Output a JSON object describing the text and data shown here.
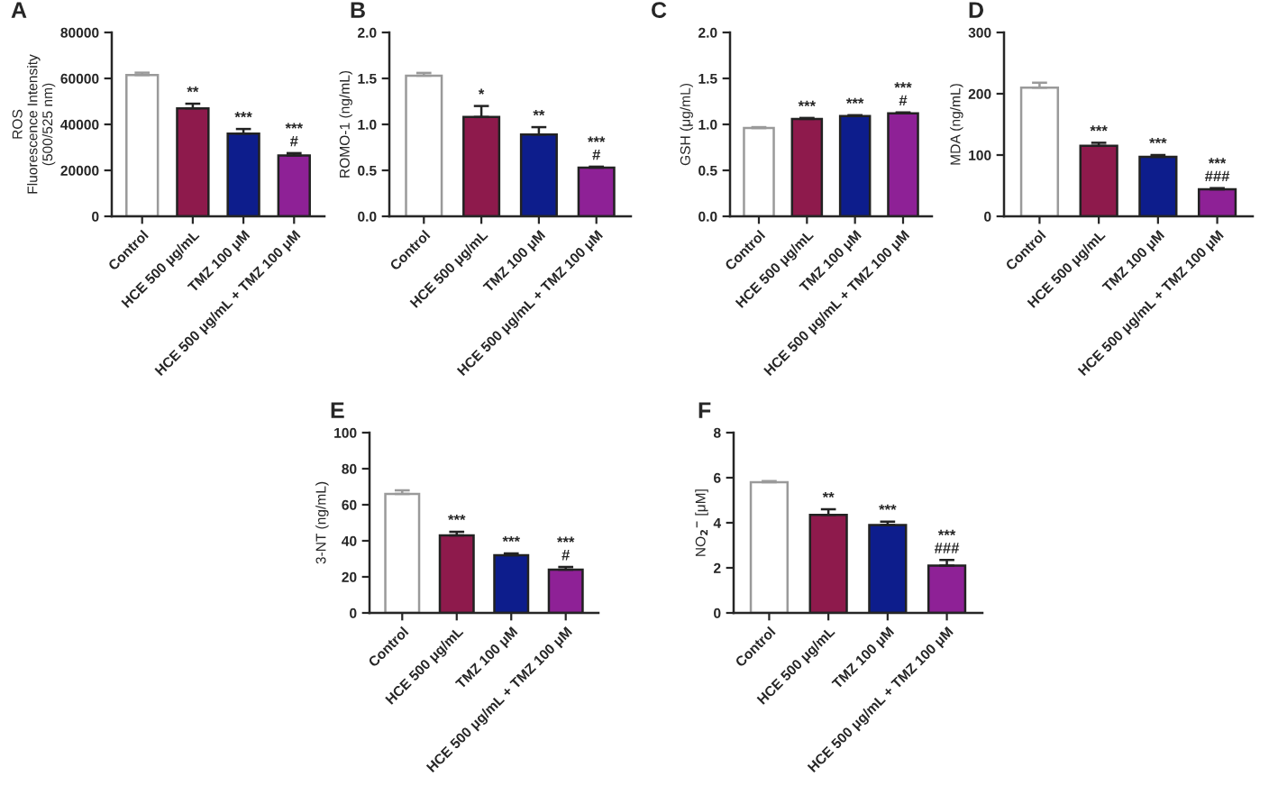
{
  "chart_data": [
    {
      "type": "bar",
      "title": "A",
      "ylabel": "ROS\nFluorescence Intensity\n(500/525 nm)",
      "categories": [
        "Control",
        "HCE 500 μg/mL",
        "TMZ 100 μM",
        "HCE 500 μg/mL + TMZ 100 μM"
      ],
      "values": [
        61500,
        47000,
        36000,
        26500
      ],
      "colors": [
        "#ffffff",
        "#8e1a4c",
        "#0d1d8c",
        "#8e2196"
      ],
      "errors": [
        [
          61500,
          62500
        ],
        [
          47000,
          49000
        ],
        [
          36000,
          38000
        ],
        [
          26500,
          27500
        ]
      ],
      "ylim": [
        0,
        80000
      ],
      "yticks": [
        0,
        20000,
        40000,
        60000,
        80000
      ],
      "annotations": [
        {
          "text": "**",
          "x": "HCE 500 μg/mL",
          "y": 49000
        },
        {
          "text": "***",
          "x": "TMZ 100 μM",
          "y": 38000
        },
        {
          "text": "***\n#",
          "x": "HCE 500 μg/mL + TMZ 100 μM",
          "y": 27500
        }
      ]
    },
    {
      "type": "bar",
      "title": "B",
      "ylabel": "ROMO-1 (ng/mL)",
      "categories": [
        "Control",
        "HCE 500 μg/mL",
        "TMZ 100 μM",
        "HCE 500 μg/mL + TMZ 100 μM"
      ],
      "values": [
        1.53,
        1.08,
        0.89,
        0.53
      ],
      "colors": [
        "#ffffff",
        "#8e1a4c",
        "#0d1d8c",
        "#8e2196"
      ],
      "errors": [
        [
          1.53,
          1.56
        ],
        [
          1.08,
          1.2
        ],
        [
          0.89,
          0.97
        ],
        [
          0.53,
          0.54
        ]
      ],
      "ylim": [
        0,
        2.0
      ],
      "yticks": [
        {
          "value": 0,
          "label": "0.0"
        },
        {
          "value": 0.5,
          "label": "0.5"
        },
        {
          "value": 1.0,
          "label": "1.0"
        },
        {
          "value": 1.5,
          "label": "1.5"
        },
        {
          "value": 2.0,
          "label": "2.0"
        }
      ],
      "annotations": [
        {
          "text": "*",
          "x": "HCE 500 μg/mL",
          "y": 1.2
        },
        {
          "text": "**",
          "x": "TMZ 100 μM",
          "y": 0.97
        },
        {
          "text": "***\n#",
          "x": "HCE 500 μg/mL + TMZ 100 μM",
          "y": 0.54
        }
      ]
    },
    {
      "type": "bar",
      "title": "C",
      "ylabel": "GSH (μg/mL)",
      "categories": [
        "Control",
        "HCE 500 μg/mL",
        "TMZ 100 μM",
        "HCE 500 μg/mL + TMZ 100 μM"
      ],
      "values": [
        0.96,
        1.06,
        1.09,
        1.12
      ],
      "colors": [
        "#ffffff",
        "#8e1a4c",
        "#0d1d8c",
        "#8e2196"
      ],
      "errors": [
        [
          0.96,
          0.97
        ],
        [
          1.06,
          1.07
        ],
        [
          1.09,
          1.1
        ],
        [
          1.12,
          1.13
        ]
      ],
      "ylim": [
        0,
        2.0
      ],
      "yticks": [
        {
          "value": 0,
          "label": "0.0"
        },
        {
          "value": 0.5,
          "label": "0.5"
        },
        {
          "value": 1.0,
          "label": "1.0"
        },
        {
          "value": 1.5,
          "label": "1.5"
        },
        {
          "value": 2.0,
          "label": "2.0"
        }
      ],
      "annotations": [
        {
          "text": "***",
          "x": "HCE 500 μg/mL",
          "y": 1.07
        },
        {
          "text": "***",
          "x": "TMZ 100 μM",
          "y": 1.1
        },
        {
          "text": "***\n#",
          "x": "HCE 500 μg/mL + TMZ 100 μM",
          "y": 1.13
        }
      ]
    },
    {
      "type": "bar",
      "title": "D",
      "ylabel": "MDA (ng/mL)",
      "categories": [
        "Control",
        "HCE 500 μg/mL",
        "TMZ 100 μM",
        "HCE 500 μg/mL + TMZ 100 μM"
      ],
      "values": [
        210,
        115,
        97,
        44
      ],
      "colors": [
        "#ffffff",
        "#8e1a4c",
        "#0d1d8c",
        "#8e2196"
      ],
      "errors": [
        [
          210,
          218
        ],
        [
          115,
          120
        ],
        [
          97,
          100
        ],
        [
          44,
          46
        ]
      ],
      "ylim": [
        0,
        300
      ],
      "yticks": [
        0,
        100,
        200,
        300
      ],
      "annotations": [
        {
          "text": "***",
          "x": "HCE 500 μg/mL",
          "y": 120
        },
        {
          "text": "***",
          "x": "TMZ 100 μM",
          "y": 100
        },
        {
          "text": "***\n###",
          "x": "HCE 500 μg/mL + TMZ 100 μM",
          "y": 46
        }
      ]
    },
    {
      "type": "bar",
      "title": "E",
      "ylabel": "3-NT (ng/mL)",
      "categories": [
        "Control",
        "HCE 500 μg/mL",
        "TMZ 100 μM",
        "HCE 500 μg/mL + TMZ 100 μM"
      ],
      "values": [
        66,
        43,
        32,
        24
      ],
      "colors": [
        "#ffffff",
        "#8e1a4c",
        "#0d1d8c",
        "#8e2196"
      ],
      "errors": [
        [
          66,
          68
        ],
        [
          43,
          45
        ],
        [
          32,
          33
        ],
        [
          24,
          25.5
        ]
      ],
      "ylim": [
        0,
        100
      ],
      "yticks": [
        0,
        20,
        40,
        60,
        80,
        100
      ],
      "annotations": [
        {
          "text": "***",
          "x": "HCE 500 μg/mL",
          "y": 45
        },
        {
          "text": "***",
          "x": "TMZ 100 μM",
          "y": 33
        },
        {
          "text": "***\n#",
          "x": "HCE 500 μg/mL + TMZ 100 μM",
          "y": 25.5
        }
      ]
    },
    {
      "type": "bar",
      "title": "F",
      "ylabel": "NO$_{2}$$^{−}$ [μM]",
      "categories": [
        "Control",
        "HCE 500 μg/mL",
        "TMZ 100 μM",
        "HCE 500 μg/mL + TMZ 100 μM"
      ],
      "values": [
        5.8,
        4.35,
        3.9,
        2.1
      ],
      "colors": [
        "#ffffff",
        "#8e1a4c",
        "#0d1d8c",
        "#8e2196"
      ],
      "errors": [
        [
          5.8,
          5.85
        ],
        [
          4.35,
          4.6
        ],
        [
          3.9,
          4.05
        ],
        [
          2.1,
          2.35
        ]
      ],
      "ylim": [
        0,
        8
      ],
      "yticks": [
        0,
        2,
        4,
        6,
        8
      ],
      "annotations": [
        {
          "text": "**",
          "x": "HCE 500 μg/mL",
          "y": 4.6
        },
        {
          "text": "***",
          "x": "TMZ 100 μM",
          "y": 4.05
        },
        {
          "text": "***\n###",
          "x": "HCE 500 μg/mL + TMZ 100 μM",
          "y": 2.35
        }
      ]
    }
  ]
}
